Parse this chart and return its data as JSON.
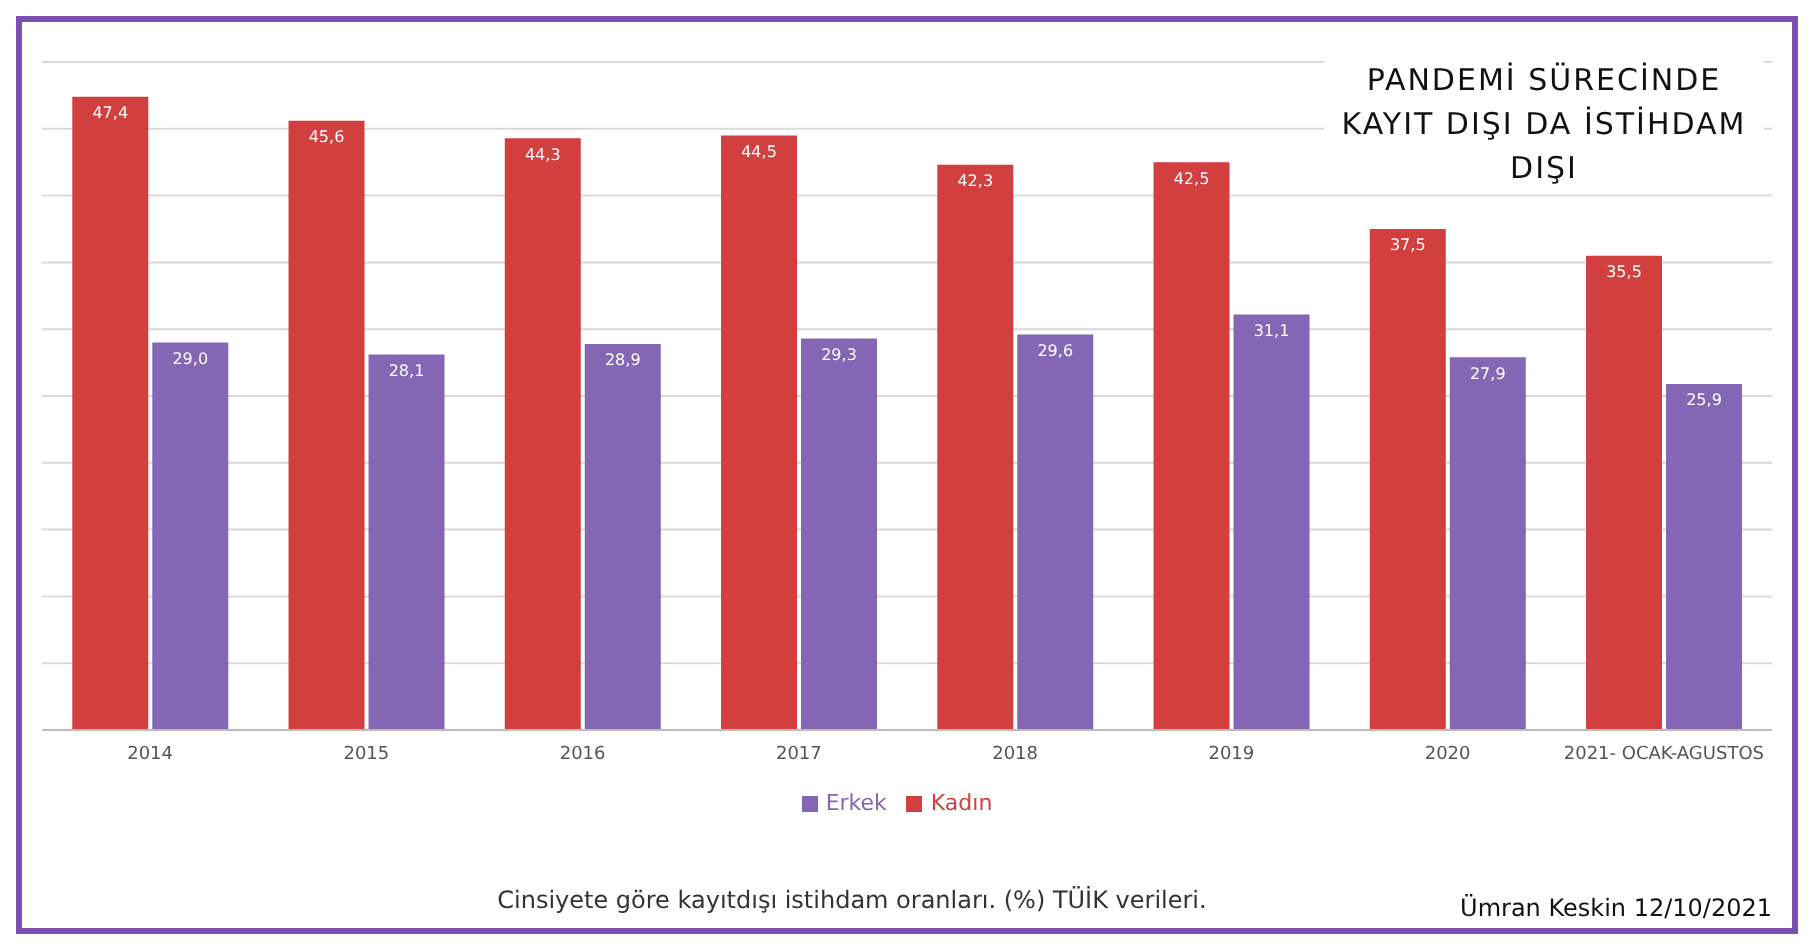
{
  "chart_data": {
    "type": "bar",
    "title": "PANDEMİ SÜRECİNDE KAYIT DIŞI DA İSTİHDAM DIŞI",
    "categories": [
      "2014",
      "2015",
      "2016",
      "2017",
      "2018",
      "2019",
      "2020",
      "2021- OCAK-AGUSTOS"
    ],
    "series": [
      {
        "name": "Kadın",
        "color": "#d13f3f",
        "values": [
          47.4,
          45.6,
          44.3,
          44.5,
          42.3,
          42.5,
          37.5,
          35.5
        ],
        "value_labels": [
          "47,4",
          "45,6",
          "44,3",
          "44,5",
          "42,3",
          "42,5",
          "37,5",
          "35,5"
        ]
      },
      {
        "name": "Erkek",
        "color": "#8466b4",
        "values": [
          29.0,
          28.1,
          28.9,
          29.3,
          29.6,
          31.1,
          27.9,
          25.9
        ],
        "value_labels": [
          "29,0",
          "28,1",
          "28,9",
          "29,3",
          "29,6",
          "31,1",
          "27,9",
          "25,9"
        ]
      }
    ],
    "ylim": [
      0,
      50
    ],
    "yticks": [
      {
        "value": 0,
        "label": null
      },
      {
        "value": 5,
        "label": null
      },
      {
        "value": 10,
        "label": null
      },
      {
        "value": 15,
        "label": null
      },
      {
        "value": 20,
        "label": null
      },
      {
        "value": 25,
        "label": null
      },
      {
        "value": 30,
        "label": null
      },
      {
        "value": 35,
        "label": null
      },
      {
        "value": 40,
        "label": null
      },
      {
        "value": 45,
        "label": null
      },
      {
        "value": 50,
        "label": null
      }
    ],
    "grid": "y",
    "tick_labels": "x",
    "legend": "bottom",
    "annotations": [
      "Cinsiyete göre kayıtdışı istihdam oranları. (%) TÜİK verileri.",
      "Ümran Keskin 12/10/2021"
    ]
  }
}
